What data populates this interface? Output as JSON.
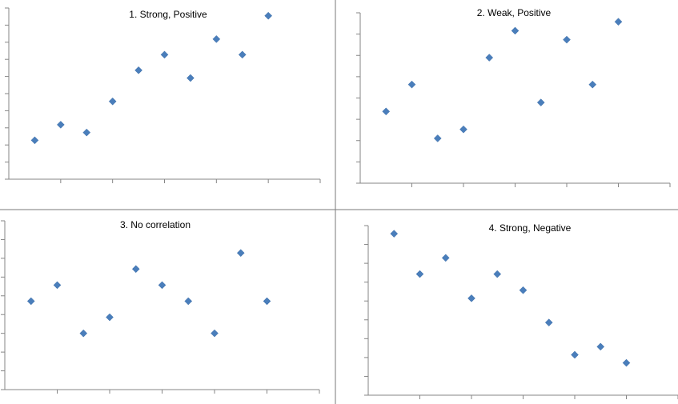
{
  "chart_data": [
    {
      "type": "scatter",
      "title": "1. Strong, Positive",
      "x": [
        1,
        2,
        3,
        4,
        5,
        6,
        7,
        8,
        9,
        10
      ],
      "y": [
        1.5,
        2.5,
        2,
        4,
        6,
        7,
        5.5,
        8,
        7,
        9.5
      ],
      "xlim": [
        0,
        12
      ],
      "ylim": [
        -1,
        10
      ],
      "grid": false,
      "marker_color": "#4a7ebb"
    },
    {
      "type": "scatter",
      "title": "2. Weak, Positive",
      "x": [
        1,
        2,
        3,
        4,
        5,
        6,
        7,
        8,
        9,
        10
      ],
      "y": [
        3,
        4.5,
        1.5,
        2,
        6,
        7.5,
        3.5,
        7,
        4.5,
        8
      ],
      "xlim": [
        0,
        12
      ],
      "ylim": [
        -1,
        8.5
      ],
      "grid": false,
      "marker_color": "#4a7ebb"
    },
    {
      "type": "scatter",
      "title": "3. No correlation",
      "x": [
        1,
        2,
        3,
        4,
        5,
        6,
        7,
        8,
        9,
        10
      ],
      "y": [
        5,
        6,
        3,
        4,
        7,
        6,
        5,
        3,
        8,
        5
      ],
      "xlim": [
        0,
        12
      ],
      "ylim": [
        -0.5,
        10
      ],
      "grid": false,
      "marker_color": "#4a7ebb"
    },
    {
      "type": "scatter",
      "title": "4. Strong, Negative",
      "x": [
        1,
        2,
        3,
        4,
        5,
        6,
        7,
        8,
        9,
        10
      ],
      "y": [
        9.5,
        7,
        8,
        5.5,
        7,
        6,
        4,
        2,
        2.5,
        1.5
      ],
      "xlim": [
        0,
        12
      ],
      "ylim": [
        -0.5,
        10
      ],
      "grid": false,
      "marker_color": "#4a7ebb"
    }
  ]
}
